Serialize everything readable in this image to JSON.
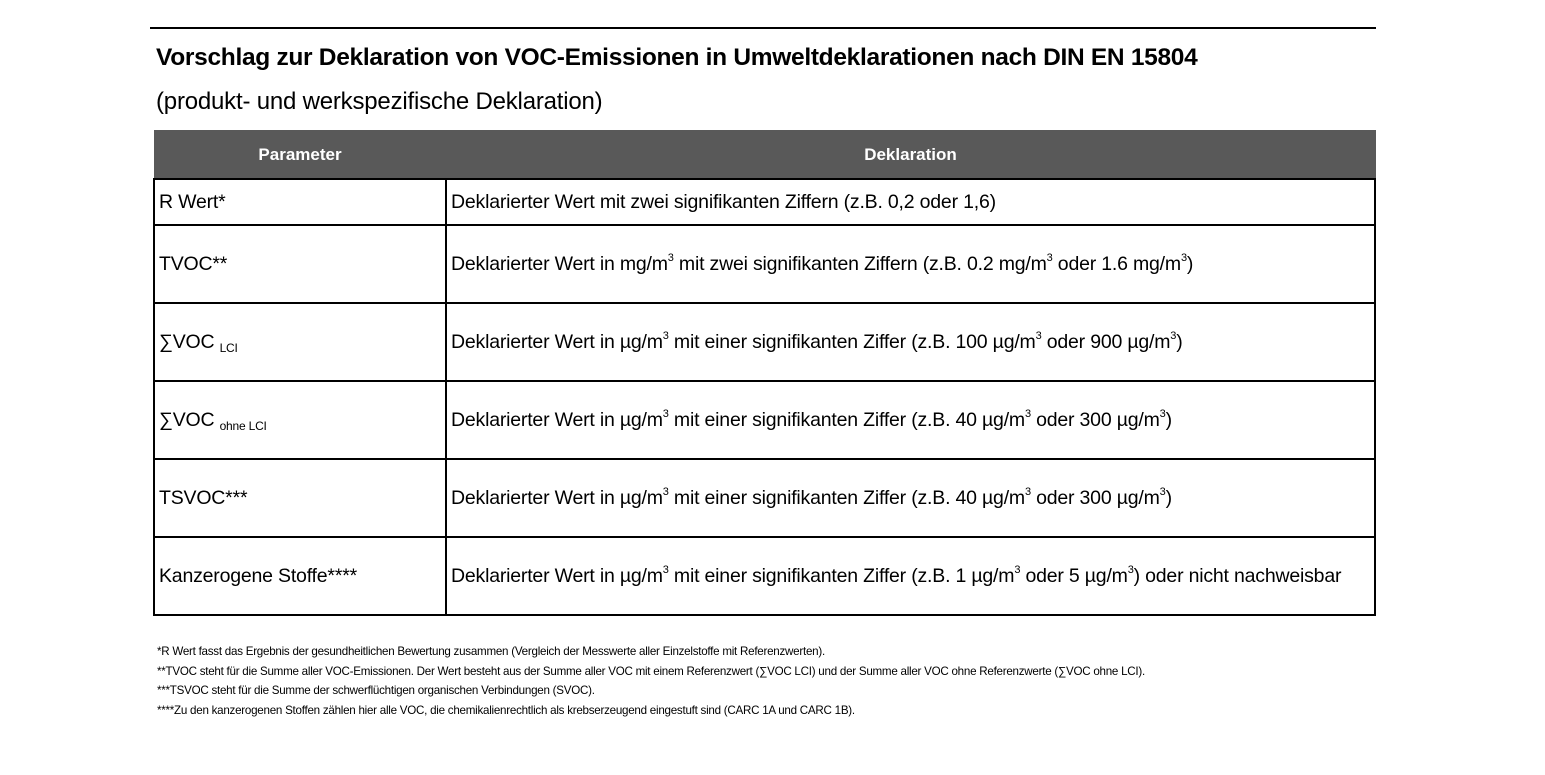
{
  "title": "Vorschlag zur Deklaration von VOC-Emissionen in Umweltdeklarationen nach DIN EN 15804",
  "subtitle": "(produkt- und werkspezifische Deklaration)",
  "table": {
    "headers": [
      "Parameter",
      "Deklaration"
    ],
    "rows": [
      {
        "param": [
          {
            "t": "R Wert*"
          }
        ],
        "decl": [
          {
            "t": "Deklarierter Wert mit zwei signifikanten Ziffern (z.B. 0,2 oder 1,6)"
          }
        ]
      },
      {
        "param": [
          {
            "t": "TVOC**"
          }
        ],
        "decl": [
          {
            "t": "Deklarierter Wert in mg/m"
          },
          {
            "sup": "3"
          },
          {
            "t": " mit zwei signifikanten Ziffern (z.B. 0.2 mg/m"
          },
          {
            "sup": "3"
          },
          {
            "t": " oder 1.6 mg/m"
          },
          {
            "sup": "3"
          },
          {
            "t": ")"
          }
        ]
      },
      {
        "param": [
          {
            "t": "∑VOC "
          },
          {
            "sub": "LCI"
          }
        ],
        "decl": [
          {
            "t": "Deklarierter Wert in µg/m"
          },
          {
            "sup": "3"
          },
          {
            "t": " mit einer signifikanten Ziffer (z.B. 100 µg/m"
          },
          {
            "sup": "3"
          },
          {
            "t": " oder 900 µg/m"
          },
          {
            "sup": "3"
          },
          {
            "t": ")"
          }
        ]
      },
      {
        "param": [
          {
            "t": "∑VOC "
          },
          {
            "sub": "ohne LCI"
          }
        ],
        "decl": [
          {
            "t": "Deklarierter Wert in µg/m"
          },
          {
            "sup": "3"
          },
          {
            "t": " mit einer signifikanten Ziffer (z.B. 40 µg/m"
          },
          {
            "sup": "3"
          },
          {
            "t": " oder 300 µg/m"
          },
          {
            "sup": "3"
          },
          {
            "t": ")"
          }
        ]
      },
      {
        "param": [
          {
            "t": "TSVOC***"
          }
        ],
        "decl": [
          {
            "t": "Deklarierter Wert in µg/m"
          },
          {
            "sup": "3"
          },
          {
            "t": " mit einer signifikanten Ziffer (z.B. 40 µg/m"
          },
          {
            "sup": "3"
          },
          {
            "t": " oder 300 µg/m"
          },
          {
            "sup": "3"
          },
          {
            "t": ")"
          }
        ]
      },
      {
        "param": [
          {
            "t": "Kanzerogene Stoffe****"
          }
        ],
        "decl": [
          {
            "t": "Deklarierter Wert in µg/m"
          },
          {
            "sup": "3"
          },
          {
            "t": " mit einer signifikanten Ziffer (z.B. 1 µg/m"
          },
          {
            "sup": "3"
          },
          {
            "t": " oder 5 µg/m"
          },
          {
            "sup": "3"
          },
          {
            "t": ") oder nicht nachweisbar"
          }
        ]
      }
    ]
  },
  "footnotes": [
    "*R Wert fasst das Ergebnis der gesundheitlichen Bewertung zusammen (Vergleich der Messwerte aller Einzelstoffe mit Referenzwerten).",
    "**TVOC steht für die Summe aller VOC-Emissionen. Der Wert besteht aus der Summe aller VOC mit einem Referenzwert (∑VOC LCI) und der Summe aller VOC ohne Referenzwerte (∑VOC ohne LCI).",
    "***TSVOC steht für die Summe der schwerflüchtigen organischen Verbindungen (SVOC).",
    "****Zu den kanzerogenen Stoffen zählen hier alle VOC, die chemikalienrechtlich als krebserzeugend eingestuft sind (CARC 1A und CARC 1B)."
  ],
  "colors": {
    "header_bg": "#595959",
    "header_text": "#ffffff"
  }
}
